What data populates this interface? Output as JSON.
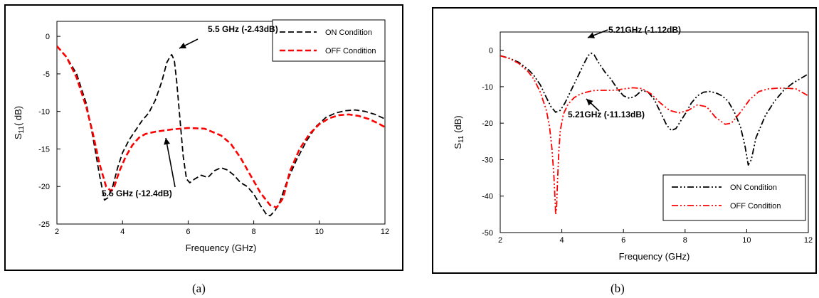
{
  "chart_data": [
    {
      "id": "a",
      "type": "line",
      "caption": "(a)",
      "xlabel": "Frequency (GHz)",
      "ylabel_main": "S",
      "ylabel_sub": "11",
      "ylabel_tail": "( dB)",
      "xlim": [
        2,
        12
      ],
      "ylim": [
        -25,
        2
      ],
      "xticks": [
        2,
        4,
        6,
        8,
        10,
        12
      ],
      "yticks": [
        0,
        -5,
        -10,
        -15,
        -20,
        -25
      ],
      "grid": false,
      "legend_position": "top-right",
      "series": [
        {
          "name": "ON Condition",
          "color": "#000000",
          "dash": "dashed",
          "x": [
            2.0,
            2.3,
            2.6,
            2.9,
            3.1,
            3.3,
            3.45,
            3.55,
            3.7,
            3.85,
            4.0,
            4.2,
            4.4,
            4.6,
            4.8,
            5.0,
            5.2,
            5.35,
            5.45,
            5.5,
            5.58,
            5.65,
            5.75,
            5.85,
            5.95,
            6.05,
            6.2,
            6.4,
            6.6,
            6.8,
            7.0,
            7.2,
            7.4,
            7.6,
            7.8,
            8.0,
            8.2,
            8.4,
            8.5,
            8.65,
            8.8,
            9.0,
            9.3,
            9.6,
            9.9,
            10.2,
            10.5,
            10.8,
            11.1,
            11.4,
            11.7,
            12.0
          ],
          "y": [
            -1.3,
            -2.8,
            -5.0,
            -9.0,
            -13.5,
            -18.5,
            -21.8,
            -21.5,
            -20.0,
            -17.5,
            -15.5,
            -13.8,
            -12.5,
            -11.2,
            -10.2,
            -8.5,
            -6.0,
            -3.5,
            -2.7,
            -2.43,
            -3.2,
            -6.0,
            -11.0,
            -16.0,
            -19.0,
            -19.5,
            -19.0,
            -18.5,
            -18.8,
            -17.9,
            -17.5,
            -17.8,
            -18.5,
            -19.5,
            -20.0,
            -21.0,
            -22.5,
            -23.8,
            -23.9,
            -23.2,
            -22.0,
            -19.5,
            -16.5,
            -14.0,
            -12.0,
            -10.8,
            -10.2,
            -9.9,
            -9.8,
            -10.0,
            -10.4,
            -11.0
          ]
        },
        {
          "name": "OFF Condition",
          "color": "#ff0000",
          "dash": "dashed",
          "x": [
            2.0,
            2.3,
            2.6,
            2.9,
            3.1,
            3.3,
            3.5,
            3.65,
            3.75,
            3.9,
            4.1,
            4.3,
            4.5,
            4.7,
            5.0,
            5.5,
            6.0,
            6.5,
            7.0,
            7.3,
            7.6,
            7.9,
            8.2,
            8.5,
            8.7,
            8.9,
            9.1,
            9.4,
            9.7,
            10.0,
            10.3,
            10.6,
            10.9,
            11.2,
            11.5,
            11.8,
            12.0
          ],
          "y": [
            -1.3,
            -2.8,
            -5.5,
            -9.5,
            -13.0,
            -17.0,
            -20.0,
            -20.6,
            -20.0,
            -18.0,
            -16.0,
            -14.5,
            -13.5,
            -13.0,
            -12.7,
            -12.4,
            -12.2,
            -12.3,
            -13.2,
            -14.3,
            -16.2,
            -18.5,
            -20.8,
            -22.5,
            -22.8,
            -21.5,
            -18.0,
            -15.0,
            -13.0,
            -11.7,
            -10.9,
            -10.5,
            -10.4,
            -10.6,
            -11.0,
            -11.6,
            -12.1
          ]
        }
      ],
      "annotations": [
        {
          "text": "5.5 GHz (-2.43dB)",
          "point": [
            5.5,
            -2.43
          ]
        },
        {
          "text": "5.5 GHz (-12.4dB)",
          "point": [
            5.5,
            -12.4
          ]
        }
      ]
    },
    {
      "id": "b",
      "type": "line",
      "caption": "(b)",
      "xlabel": "Frequency (GHz)",
      "ylabel_main": "S",
      "ylabel_sub": "11",
      "ylabel_tail": " (dB)",
      "xlim": [
        2,
        12
      ],
      "ylim": [
        -50,
        5
      ],
      "xticks": [
        2,
        4,
        6,
        8,
        10,
        12
      ],
      "yticks": [
        0,
        -10,
        -20,
        -30,
        -40,
        -50
      ],
      "grid": false,
      "legend_position": "bottom-right",
      "series": [
        {
          "name": "ON Condition",
          "color": "#000000",
          "dash": "dash-dot-dot",
          "x": [
            2.0,
            2.3,
            2.6,
            2.9,
            3.1,
            3.3,
            3.5,
            3.65,
            3.8,
            3.95,
            4.1,
            4.3,
            4.5,
            4.7,
            4.85,
            4.95,
            5.05,
            5.2,
            5.4,
            5.6,
            5.8,
            6.0,
            6.2,
            6.4,
            6.6,
            6.8,
            7.0,
            7.2,
            7.4,
            7.55,
            7.7,
            7.85,
            8.0,
            8.2,
            8.4,
            8.6,
            8.8,
            9.0,
            9.2,
            9.4,
            9.6,
            9.8,
            9.95,
            10.05,
            10.15,
            10.3,
            10.6,
            10.9,
            11.2,
            11.5,
            11.8,
            12.0
          ],
          "y": [
            -1.5,
            -2.2,
            -3.3,
            -5.2,
            -7.0,
            -9.5,
            -13.0,
            -15.5,
            -17.0,
            -16.5,
            -14.5,
            -11.0,
            -7.5,
            -4.0,
            -1.5,
            -0.8,
            -1.3,
            -3.5,
            -6.0,
            -8.0,
            -10.5,
            -12.5,
            -13.2,
            -12.5,
            -11.0,
            -11.5,
            -13.5,
            -17.0,
            -20.5,
            -22.0,
            -21.5,
            -19.5,
            -17.5,
            -14.5,
            -12.5,
            -11.5,
            -11.3,
            -11.7,
            -12.5,
            -14.0,
            -17.0,
            -21.0,
            -26.5,
            -31.5,
            -30.0,
            -24.0,
            -18.0,
            -14.0,
            -11.0,
            -9.0,
            -7.5,
            -6.5
          ]
        },
        {
          "name": "OFF Condition",
          "color": "#ff0000",
          "dash": "dash-dot-dot",
          "x": [
            2.0,
            2.3,
            2.6,
            2.9,
            3.1,
            3.3,
            3.5,
            3.6,
            3.68,
            3.74,
            3.78,
            3.8,
            3.83,
            3.86,
            3.9,
            3.95,
            4.05,
            4.2,
            4.4,
            4.6,
            4.8,
            5.0,
            5.2,
            5.4,
            5.6,
            5.8,
            6.0,
            6.3,
            6.6,
            6.9,
            7.2,
            7.5,
            7.8,
            8.1,
            8.4,
            8.7,
            9.0,
            9.3,
            9.5,
            9.8,
            10.1,
            10.4,
            10.7,
            11.0,
            11.3,
            11.6,
            12.0
          ],
          "y": [
            -1.5,
            -2.3,
            -3.6,
            -5.8,
            -8.0,
            -11.5,
            -16.5,
            -21.0,
            -27.0,
            -34.0,
            -41.0,
            -45.0,
            -43.0,
            -36.0,
            -28.0,
            -22.0,
            -17.5,
            -14.8,
            -13.0,
            -12.0,
            -11.5,
            -11.1,
            -11.0,
            -11.0,
            -11.0,
            -10.9,
            -10.6,
            -10.3,
            -10.5,
            -12.0,
            -14.5,
            -16.5,
            -17.2,
            -16.5,
            -15.0,
            -15.5,
            -18.5,
            -20.3,
            -20.0,
            -17.0,
            -13.5,
            -11.3,
            -10.6,
            -10.4,
            -10.4,
            -10.6,
            -12.5
          ]
        }
      ],
      "annotations": [
        {
          "text": "5.21GHz (-1.12dB)",
          "point": [
            4.9,
            -1.0
          ]
        },
        {
          "text": "5.21GHz (-11.13dB)",
          "point": [
            5.05,
            -11.5
          ]
        }
      ]
    }
  ]
}
